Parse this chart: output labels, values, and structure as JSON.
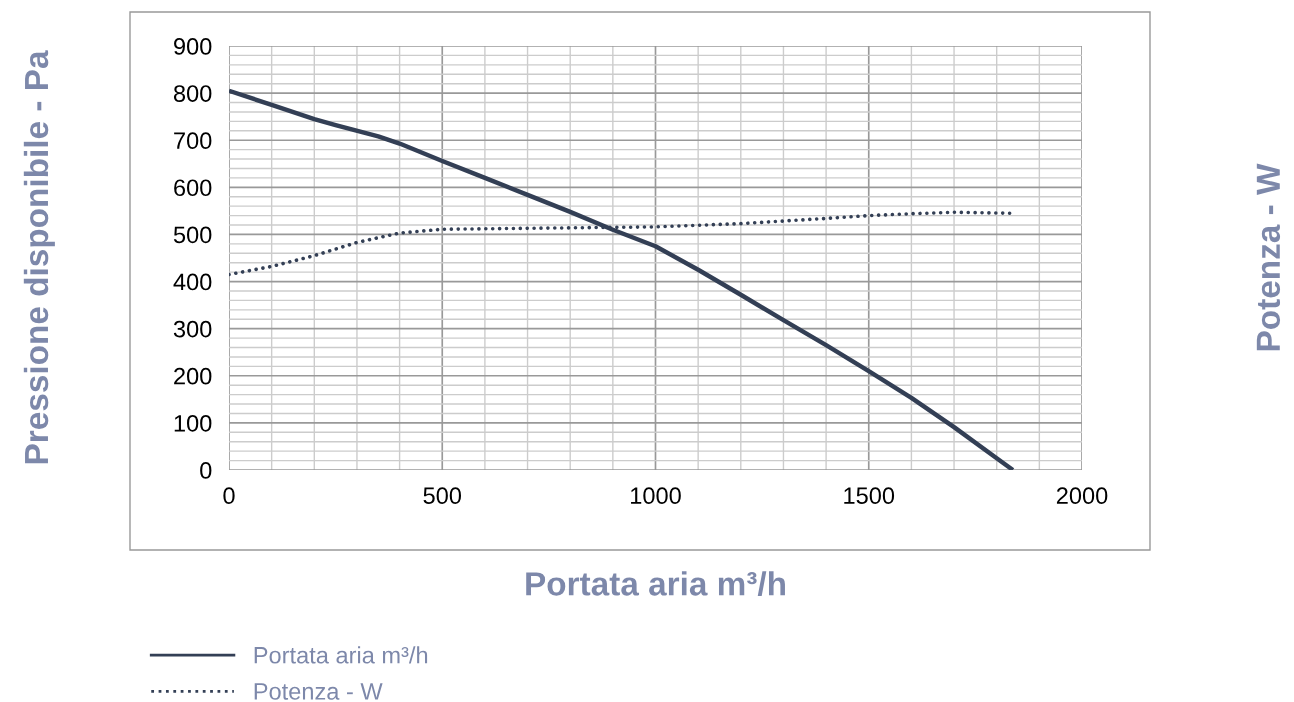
{
  "chart_data": {
    "type": "line",
    "xlabel": "Portata aria m³/h",
    "ylabel": "Pressione disponibile - Pa",
    "y2label": "Potenza - W",
    "xlim": [
      0,
      2000
    ],
    "xticks": [
      0,
      500,
      1000,
      1500,
      2000
    ],
    "ylim": [
      0,
      900
    ],
    "yticks": [
      0,
      100,
      200,
      300,
      400,
      500,
      600,
      700,
      800,
      900
    ],
    "grid": true,
    "legend": "bottom",
    "marker": "none",
    "series": [
      {
        "name": "Portata aria m³/h",
        "color": "#333f55",
        "line_style": "solid",
        "x": [
          0,
          100,
          200,
          250,
          350,
          400,
          500,
          600,
          700,
          800,
          900,
          1000,
          1100,
          1200,
          1300,
          1400,
          1500,
          1600,
          1700,
          1800,
          1838
        ],
        "values": [
          805,
          775,
          745,
          732,
          708,
          693,
          656,
          620,
          584,
          548,
          510,
          475,
          425,
          372,
          318,
          265,
          210,
          153,
          91,
          25,
          0
        ]
      },
      {
        "name": "Potenza - W",
        "color": "#333f55",
        "line_style": "dotted",
        "x": [
          0,
          100,
          200,
          300,
          400,
          500,
          600,
          800,
          1000,
          1200,
          1400,
          1500,
          1600,
          1700,
          1838
        ],
        "values": [
          415,
          432,
          455,
          483,
          503,
          511,
          512,
          514,
          516,
          523,
          534,
          540,
          544,
          547,
          545
        ]
      }
    ]
  }
}
